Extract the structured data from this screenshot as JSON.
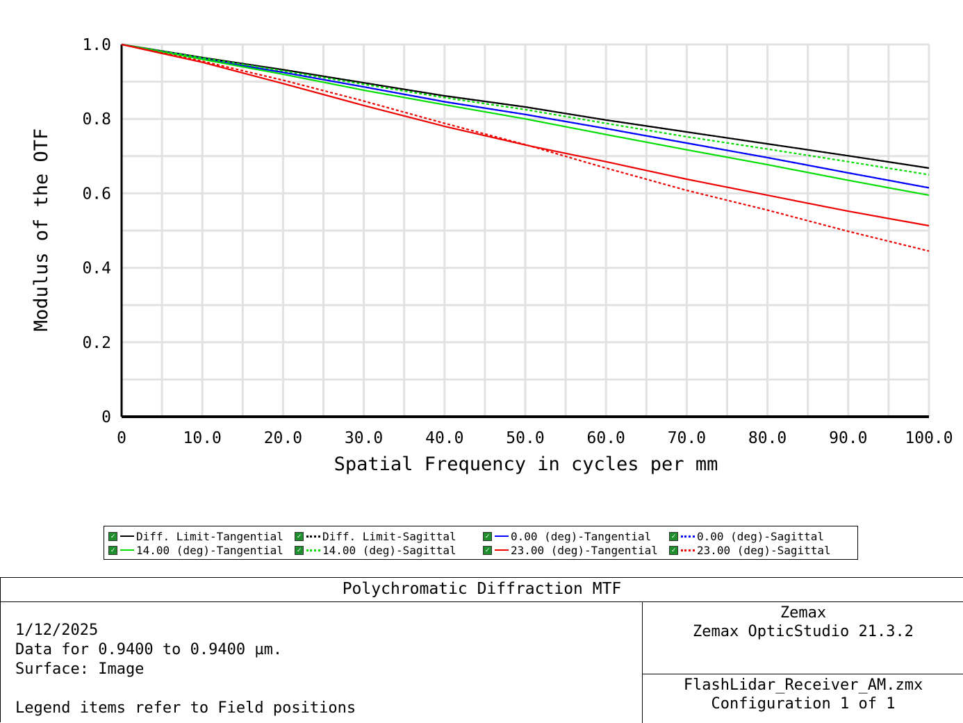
{
  "chart_data": {
    "type": "line",
    "title": "",
    "xlabel": "Spatial Frequency in cycles per mm",
    "ylabel": "Modulus of the OTF",
    "xlim": [
      0,
      100
    ],
    "ylim": [
      0,
      1
    ],
    "xticks": [
      "0",
      "10.0",
      "20.0",
      "30.0",
      "40.0",
      "50.0",
      "60.0",
      "70.0",
      "80.0",
      "90.0",
      "100.0"
    ],
    "yticks": [
      "0",
      "0.2",
      "0.4",
      "0.6",
      "0.8",
      "1.0"
    ],
    "grid": true,
    "x": [
      0,
      10,
      20,
      30,
      40,
      50,
      60,
      70,
      80,
      90,
      100
    ],
    "series": [
      {
        "name": "Diff. Limit-Tangential",
        "color": "#000000",
        "dash": false,
        "values": [
          1.0,
          0.965,
          0.932,
          0.897,
          0.862,
          0.832,
          0.797,
          0.765,
          0.733,
          0.701,
          0.668
        ]
      },
      {
        "name": "Diff. Limit-Sagittal",
        "color": "#000000",
        "dash": true,
        "values": [
          1.0,
          0.965,
          0.932,
          0.897,
          0.862,
          0.832,
          0.797,
          0.765,
          0.733,
          0.701,
          0.668
        ]
      },
      {
        "name": "0.00 (deg)-Tangential",
        "color": "#0000ff",
        "dash": false,
        "values": [
          1.0,
          0.962,
          0.925,
          0.886,
          0.846,
          0.812,
          0.774,
          0.735,
          0.696,
          0.655,
          0.615
        ]
      },
      {
        "name": "0.00 (deg)-Sagittal",
        "color": "#0000ff",
        "dash": true,
        "values": [
          1.0,
          0.962,
          0.925,
          0.886,
          0.846,
          0.812,
          0.774,
          0.735,
          0.696,
          0.655,
          0.615
        ]
      },
      {
        "name": "14.00 (deg)-Tangential",
        "color": "#00dd00",
        "dash": false,
        "values": [
          1.0,
          0.96,
          0.92,
          0.877,
          0.838,
          0.8,
          0.758,
          0.717,
          0.677,
          0.635,
          0.595
        ]
      },
      {
        "name": "14.00 (deg)-Sagittal",
        "color": "#00dd00",
        "dash": true,
        "values": [
          1.0,
          0.964,
          0.929,
          0.893,
          0.857,
          0.825,
          0.788,
          0.752,
          0.719,
          0.685,
          0.65
        ]
      },
      {
        "name": "23.00 (deg)-Tangential",
        "color": "#ee0000",
        "dash": false,
        "values": [
          1.0,
          0.952,
          0.895,
          0.836,
          0.78,
          0.73,
          0.685,
          0.638,
          0.595,
          0.552,
          0.513
        ]
      },
      {
        "name": "23.00 (deg)-Sagittal",
        "color": "#ee0000",
        "dash": true,
        "values": [
          1.0,
          0.955,
          0.904,
          0.848,
          0.788,
          0.731,
          0.668,
          0.608,
          0.555,
          0.498,
          0.445
        ]
      }
    ]
  },
  "info": {
    "title": "Polychromatic Diffraction MTF",
    "date": "1/12/2025",
    "data_range": "Data for 0.9400 to 0.9400 µm.",
    "surface": "Surface: Image",
    "legend_note": "Legend items refer to Field positions",
    "vendor": "Zemax",
    "product": "Zemax OpticStudio 21.3.2",
    "file": "FlashLidar_Receiver_AM.zmx",
    "configuration": "Configuration 1 of 1"
  },
  "legend": {
    "check_glyph": "✓"
  }
}
